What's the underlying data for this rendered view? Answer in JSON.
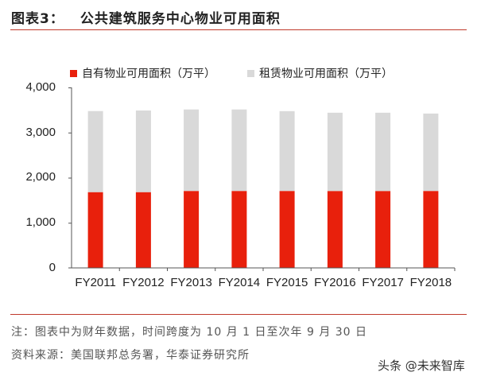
{
  "header": {
    "figure_label": "图表3：",
    "title": "公共建筑服务中心物业可用面积"
  },
  "colors": {
    "owned": "#e8200c",
    "leased": "#d9d9d9",
    "rule": "#c0392b",
    "axis": "#555555"
  },
  "legend": [
    {
      "label": "自有物业可用面积（万平）",
      "color": "#e8200c"
    },
    {
      "label": "租赁物业可用面积（万平）",
      "color": "#d9d9d9"
    }
  ],
  "yaxis": {
    "ticks": [
      "4,000",
      "3,000",
      "2,000",
      "1,000",
      "0"
    ]
  },
  "footer": {
    "note": "注：图表中为财年数据，时间跨度为 10 月 1 日至次年 9 月 30 日",
    "source": "资料来源：美国联邦总务署，华泰证券研究所",
    "watermark": "头条 @未来智库"
  },
  "chart_data": {
    "type": "bar",
    "stacked": true,
    "title": "公共建筑服务中心物业可用面积",
    "xlabel": "",
    "ylabel": "",
    "ylim": [
      0,
      4000
    ],
    "yticks": [
      0,
      1000,
      2000,
      3000,
      4000
    ],
    "legend_position": "top",
    "grid": false,
    "categories": [
      "FY2011",
      "FY2012",
      "FY2013",
      "FY2014",
      "FY2015",
      "FY2016",
      "FY2017",
      "FY2018"
    ],
    "series": [
      {
        "name": "自有物业可用面积（万平）",
        "color": "#e8200c",
        "values": [
          1680,
          1680,
          1705,
          1705,
          1705,
          1705,
          1705,
          1705
        ]
      },
      {
        "name": "租赁物业可用面积（万平）",
        "color": "#d9d9d9",
        "values": [
          1797,
          1809,
          1807,
          1807,
          1770,
          1735,
          1735,
          1717
        ]
      }
    ],
    "totals": [
      3477,
      3489,
      3512,
      3512,
      3475,
      3440,
      3440,
      3422
    ]
  }
}
